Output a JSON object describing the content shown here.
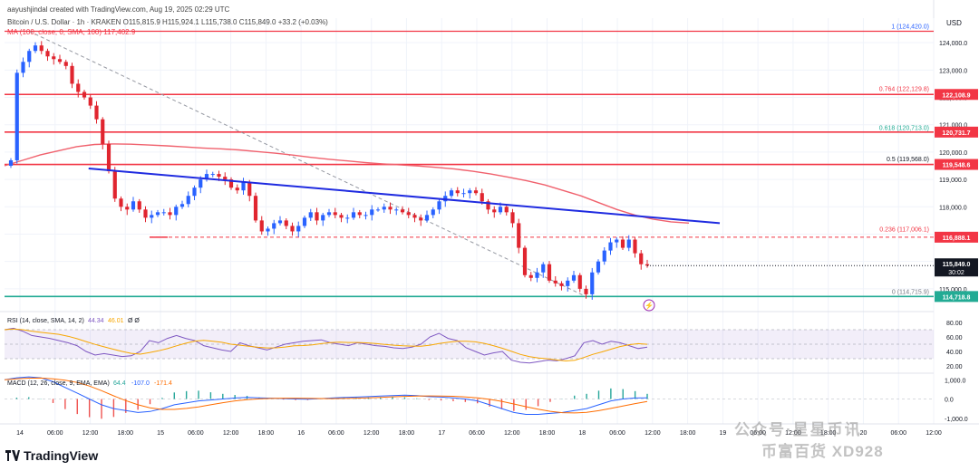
{
  "header": {
    "credit": "aayushjindal created with TradingView.com, Aug 19, 2025 02:29 UTC",
    "symbol_line": "Bitcoin / U.S. Dollar · 1h · KRAKEN  O115,815.9  H115,924.1  L115,738.0  C115,849.0  +33.2 (+0.03%)",
    "ma_line": "MA (100, close, 0, SMA, 100)  117,402.9"
  },
  "price_axis": {
    "currency": "USD",
    "ticks": [
      "124,000.0",
      "123,000.0",
      "122,000.0",
      "121,000.0",
      "120,000.0",
      "119,000.0",
      "118,000.0",
      "117,000.0",
      "116,000.0",
      "115,000.0"
    ],
    "tags": [
      {
        "text": "122,108.9",
        "value": 122108.9,
        "color": "#f23645"
      },
      {
        "text": "120,731.7",
        "value": 120731.7,
        "color": "#f23645"
      },
      {
        "text": "119,548.6",
        "value": 119548.6,
        "color": "#f23645"
      },
      {
        "text": "116,888.1",
        "value": 116888.1,
        "color": "#f23645"
      },
      {
        "text": "114,718.8",
        "value": 114718.8,
        "color": "#22ab94"
      }
    ],
    "current": {
      "text": "115,849.0",
      "countdown": "30:02",
      "value": 115849.0,
      "color": "#131722"
    }
  },
  "fib_labels": [
    {
      "text": "1 (124,420.0)",
      "value": 124420.0,
      "color": "#2962ff"
    },
    {
      "text": "0.764 (122,129.8)",
      "value": 122129.8,
      "color": "#f23645"
    },
    {
      "text": "0.618 (120,713.0)",
      "value": 120713.0,
      "color": "#22ab94"
    },
    {
      "text": "0.5 (119,568.0)",
      "value": 119568.0,
      "color": "#131722"
    },
    {
      "text": "0.236 (117,006.1)",
      "value": 117006.1,
      "color": "#f23645"
    },
    {
      "text": "0 (114,715.9)",
      "value": 114715.9,
      "color": "#787b86"
    }
  ],
  "time_axis": [
    "14",
    "06:00",
    "12:00",
    "18:00",
    "15",
    "06:00",
    "12:00",
    "18:00",
    "16",
    "06:00",
    "12:00",
    "18:00",
    "17",
    "06:00",
    "12:00",
    "18:00",
    "18",
    "06:00",
    "12:00",
    "18:00",
    "19",
    "06:00",
    "12:00",
    "18:00",
    "20",
    "06:00",
    "12:00"
  ],
  "rsi": {
    "label": "RSI (14, close, SMA, 14, 2)",
    "value": "44.34",
    "ma_value": "46.01",
    "extra": "Ø  Ø",
    "ticks": [
      "80.00",
      "60.00",
      "40.00",
      "20.00"
    ]
  },
  "macd": {
    "label": "MACD (12, 26, close, 9, EMA, EMA)",
    "hist": "64.4",
    "macd": "-107.0",
    "signal": "-171.4",
    "ticks": [
      "1,000.0",
      "0.0",
      "-1,000.0"
    ]
  },
  "footer": {
    "logo": "TradingView",
    "watermark_1": "公众号·星星币讯",
    "watermark_2": "币富百货 XD928"
  },
  "chart_data": {
    "type": "candlestick",
    "title": "Bitcoin / U.S. Dollar · 1h · KRAKEN",
    "ylabel": "USD",
    "ylim": [
      114300,
      124900
    ],
    "grid": true,
    "candles_close": [
      119700,
      122900,
      123300,
      123700,
      123900,
      123700,
      123500,
      123400,
      123300,
      123150,
      122500,
      122200,
      122000,
      121700,
      121200,
      120300,
      119300,
      118300,
      118000,
      117900,
      118200,
      117900,
      117600,
      117700,
      117800,
      117800,
      117700,
      118000,
      118100,
      118400,
      118700,
      119000,
      119200,
      119200,
      119100,
      119000,
      118700,
      118600,
      118900,
      118400,
      117500,
      117100,
      117200,
      117400,
      117500,
      117300,
      117100,
      117300,
      117600,
      117800,
      117500,
      117700,
      117800,
      117700,
      117600,
      117600,
      117800,
      117700,
      117700,
      117900,
      117900,
      118000,
      117900,
      117900,
      117800,
      117700,
      117600,
      117500,
      117700,
      117900,
      118200,
      118400,
      118600,
      118500,
      118500,
      118600,
      118500,
      118200,
      117900,
      117800,
      118000,
      117800,
      117400,
      116500,
      115500,
      115400,
      115600,
      115900,
      115300,
      115200,
      115100,
      115300,
      115500,
      115000,
      114800,
      115600,
      116000,
      116400,
      116700,
      116800,
      116500,
      116800,
      116300,
      115900,
      115849
    ],
    "ma100": [
      119500,
      119700,
      119900,
      120050,
      120200,
      120280,
      120300,
      120290,
      120260,
      120230,
      120190,
      120150,
      120120,
      120080,
      120020,
      119960,
      119890,
      119810,
      119740,
      119680,
      119620,
      119570,
      119530,
      119490,
      119440,
      119380,
      119300,
      119200,
      119080,
      118950,
      118800,
      118600,
      118400,
      118150,
      117900,
      117700,
      117550,
      117450,
      117402.9
    ],
    "trendline_resistance": {
      "from": [
        13,
        119400
      ],
      "to": [
        104,
        117500
      ]
    },
    "levels": [
      122108.9,
      120731.7,
      119548.6,
      116888.1,
      114718.8
    ]
  }
}
